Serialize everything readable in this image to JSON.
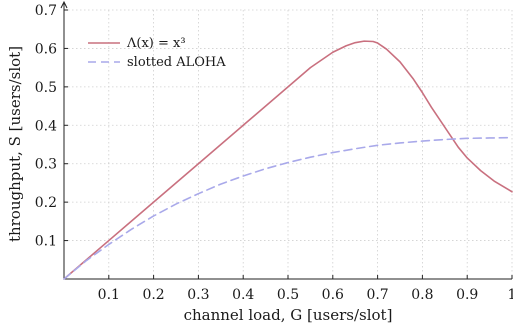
{
  "chart_data": {
    "type": "line",
    "xlabel": "channel load, G [users/slot]",
    "ylabel": "throughput, S [users/slot]",
    "xlim": [
      0,
      1
    ],
    "ylim": [
      0,
      0.7
    ],
    "x_ticks": [
      "0.1",
      "0.2",
      "0.3",
      "0.4",
      "0.5",
      "0.6",
      "0.7",
      "0.8",
      "0.9",
      "1"
    ],
    "y_ticks": [
      "0.1",
      "0.2",
      "0.3",
      "0.4",
      "0.5",
      "0.6",
      "0.7"
    ],
    "grid": true,
    "legend_position": "top-left",
    "series": [
      {
        "name": "Λ(x) = x³",
        "color": "#c9707f",
        "dash": "solid",
        "x": [
          0,
          0.1,
          0.2,
          0.3,
          0.4,
          0.5,
          0.55,
          0.6,
          0.63,
          0.65,
          0.67,
          0.69,
          0.7,
          0.72,
          0.75,
          0.78,
          0.8,
          0.82,
          0.85,
          0.88,
          0.9,
          0.93,
          0.96,
          1.0
        ],
        "y": [
          0,
          0.1,
          0.2,
          0.3,
          0.4,
          0.5,
          0.55,
          0.59,
          0.607,
          0.615,
          0.619,
          0.618,
          0.614,
          0.598,
          0.565,
          0.52,
          0.485,
          0.447,
          0.395,
          0.343,
          0.315,
          0.282,
          0.255,
          0.227
        ]
      },
      {
        "name": "slotted ALOHA",
        "color": "#a9a9ea",
        "dash": "dashed",
        "x": [
          0,
          0.05,
          0.1,
          0.15,
          0.2,
          0.25,
          0.3,
          0.35,
          0.4,
          0.45,
          0.5,
          0.55,
          0.6,
          0.65,
          0.7,
          0.75,
          0.8,
          0.85,
          0.9,
          0.95,
          1.0
        ],
        "y": [
          0,
          0.048,
          0.09,
          0.129,
          0.164,
          0.195,
          0.222,
          0.247,
          0.268,
          0.287,
          0.303,
          0.317,
          0.329,
          0.339,
          0.348,
          0.354,
          0.359,
          0.363,
          0.366,
          0.367,
          0.368
        ]
      }
    ]
  }
}
